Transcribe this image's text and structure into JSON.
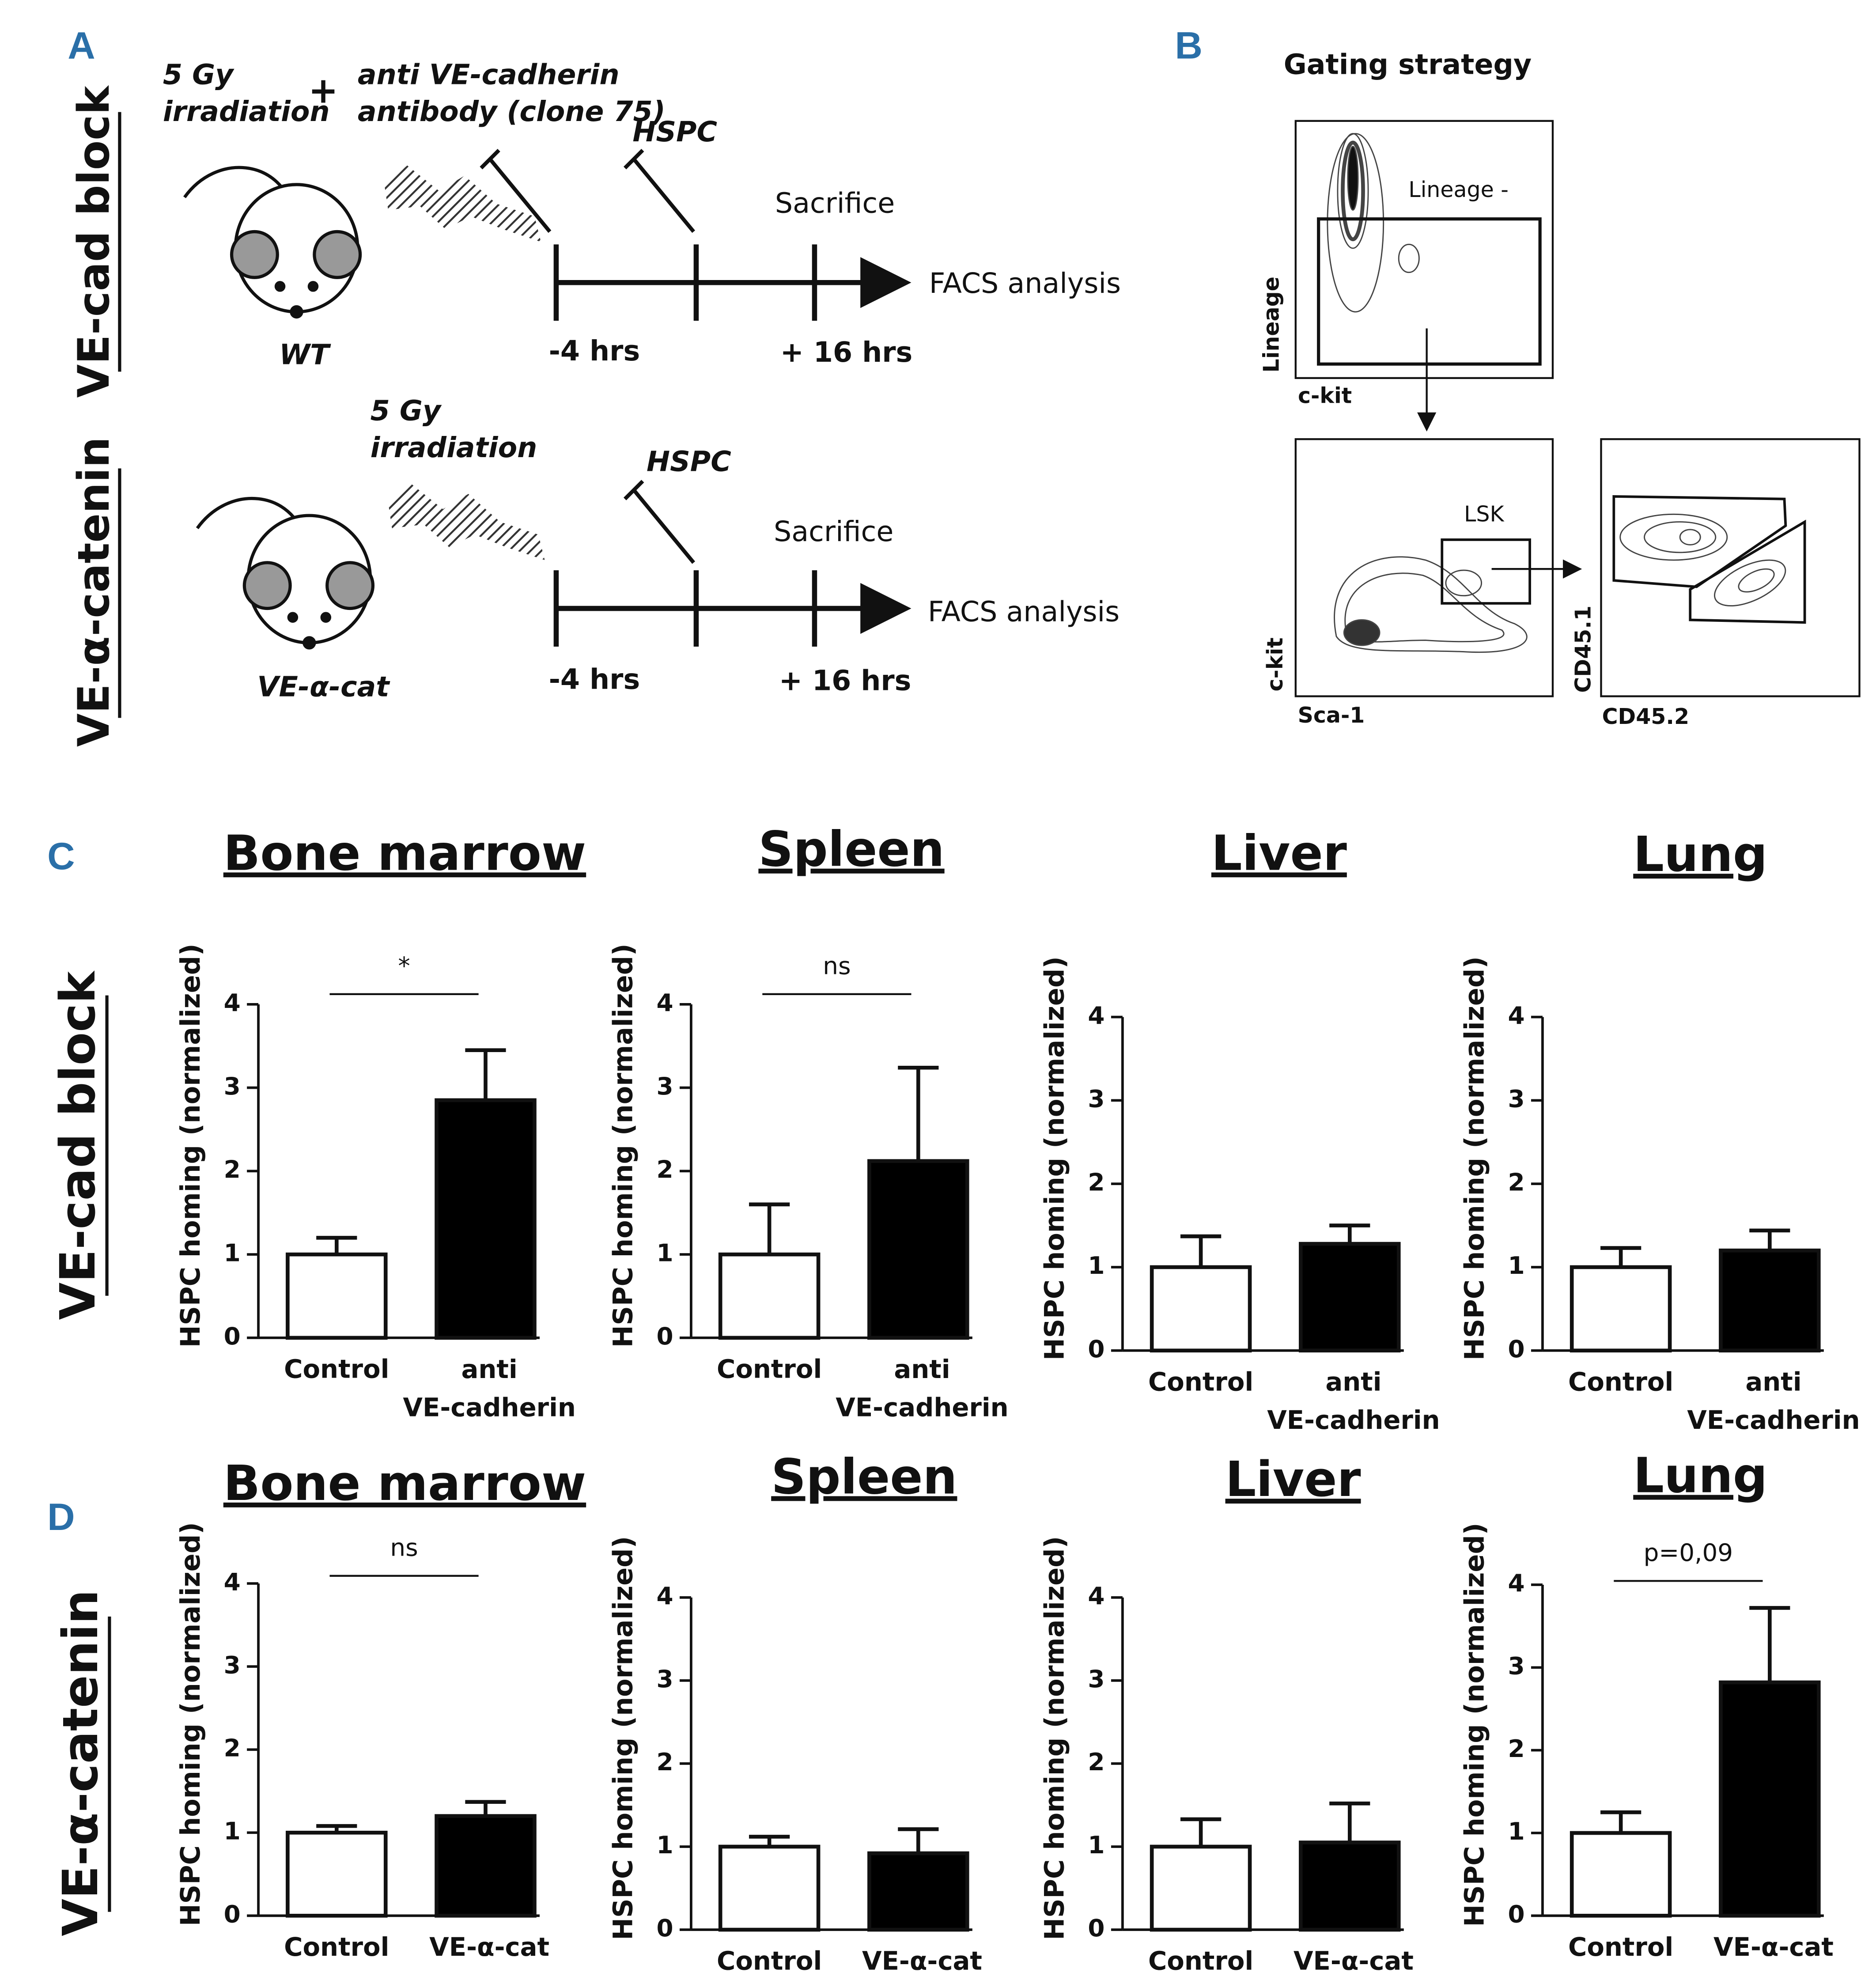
{
  "panel_labels": {
    "a": "A",
    "b": "B",
    "c": "C",
    "d": "D"
  },
  "panel_a": {
    "rows": [
      {
        "label": "VE-cad block",
        "mouse": "WT",
        "irradiation": [
          "5 Gy",
          "irradiation"
        ],
        "plus": "+",
        "antibody": [
          "anti VE-cadherin",
          "antibody (clone 75)"
        ],
        "hspc": "HSPC",
        "sacrifice": "Sacrifice",
        "analysis": "FACS analysis",
        "times": [
          "-4 hrs",
          "+ 16 hrs"
        ]
      },
      {
        "label": "VE-α-catenin",
        "mouse": "VE-α-cat",
        "irradiation": [
          "5 Gy",
          "irradiation"
        ],
        "hspc": "HSPC",
        "sacrifice": "Sacrifice",
        "analysis": "FACS analysis",
        "times": [
          "-4 hrs",
          "+ 16 hrs"
        ]
      }
    ]
  },
  "panel_b": {
    "title": "Gating strategy",
    "gate1": "Lineage -",
    "plot1_y": "Lineage",
    "plot1_x": "c-kit",
    "gate2": "LSK",
    "plot2_y": "c-kit",
    "plot2_x": "Sca-1",
    "plot3_y": "CD45.1",
    "plot3_x": "CD45.2"
  },
  "row_labels": [
    "VE-cad block",
    "VE-α-catenin"
  ],
  "chart_data": [
    {
      "type": "bar",
      "title": "Bone marrow",
      "y_label": "HSPC homing (normalized)",
      "categories": [
        "Control",
        "anti VE-cadherin"
      ],
      "values": [
        1,
        2.85
      ],
      "errors": [
        0.2,
        0.6
      ],
      "colors": [
        "#ffffff",
        "#000000"
      ],
      "ylim": [
        0,
        4
      ],
      "yticks": [
        0,
        1,
        2,
        3,
        4
      ],
      "annotation": "*"
    },
    {
      "type": "bar",
      "title": "Spleen",
      "y_label": "HSPC homing (normalized)",
      "categories": [
        "Control",
        "anti VE-cadherin"
      ],
      "values": [
        1,
        2.12
      ],
      "errors": [
        0.6,
        1.12
      ],
      "colors": [
        "#ffffff",
        "#000000"
      ],
      "ylim": [
        0,
        4
      ],
      "yticks": [
        0,
        1,
        2,
        3,
        4
      ],
      "annotation": "ns"
    },
    {
      "type": "bar",
      "title": "Liver",
      "y_label": "HSPC homing (normalized)",
      "categories": [
        "Control",
        "anti VE-cadherin"
      ],
      "values": [
        1,
        1.28
      ],
      "errors": [
        0.37,
        0.22
      ],
      "colors": [
        "#ffffff",
        "#000000"
      ],
      "ylim": [
        0,
        4
      ],
      "yticks": [
        0,
        1,
        2,
        3,
        4
      ]
    },
    {
      "type": "bar",
      "title": "Lung",
      "y_label": "HSPC homing (normalized)",
      "categories": [
        "Control",
        "anti VE-cadherin"
      ],
      "values": [
        1,
        1.2
      ],
      "errors": [
        0.23,
        0.24
      ],
      "colors": [
        "#ffffff",
        "#000000"
      ],
      "ylim": [
        0,
        4
      ],
      "yticks": [
        0,
        1,
        2,
        3,
        4
      ]
    },
    {
      "type": "bar",
      "title": "Bone marrow",
      "y_label": "HSPC homing (normalized)",
      "categories": [
        "Control",
        "VE-α-cat"
      ],
      "values": [
        1,
        1.2
      ],
      "errors": [
        0.08,
        0.17
      ],
      "colors": [
        "#ffffff",
        "#000000"
      ],
      "ylim": [
        0,
        4
      ],
      "yticks": [
        0,
        1,
        2,
        3,
        4
      ],
      "annotation": "ns"
    },
    {
      "type": "bar",
      "title": "Spleen",
      "y_label": "HSPC homing (normalized)",
      "categories": [
        "Control",
        "VE-α-cat"
      ],
      "values": [
        1,
        0.92
      ],
      "errors": [
        0.12,
        0.29
      ],
      "colors": [
        "#ffffff",
        "#000000"
      ],
      "ylim": [
        0,
        4
      ],
      "yticks": [
        0,
        1,
        2,
        3,
        4
      ]
    },
    {
      "type": "bar",
      "title": "Liver",
      "y_label": "HSPC homing (normalized)",
      "categories": [
        "Control",
        "VE-α-cat"
      ],
      "values": [
        1,
        1.05
      ],
      "errors": [
        0.33,
        0.47
      ],
      "colors": [
        "#ffffff",
        "#000000"
      ],
      "ylim": [
        0,
        4
      ],
      "yticks": [
        0,
        1,
        2,
        3,
        4
      ]
    },
    {
      "type": "bar",
      "title": "Lung",
      "y_label": "HSPC homing (normalized)",
      "categories": [
        "Control",
        "VE-α-cat"
      ],
      "values": [
        1,
        2.82
      ],
      "errors": [
        0.25,
        0.9
      ],
      "colors": [
        "#ffffff",
        "#000000"
      ],
      "ylim": [
        0,
        4
      ],
      "yticks": [
        0,
        1,
        2,
        3,
        4
      ],
      "annotation": "p=0,09"
    }
  ]
}
